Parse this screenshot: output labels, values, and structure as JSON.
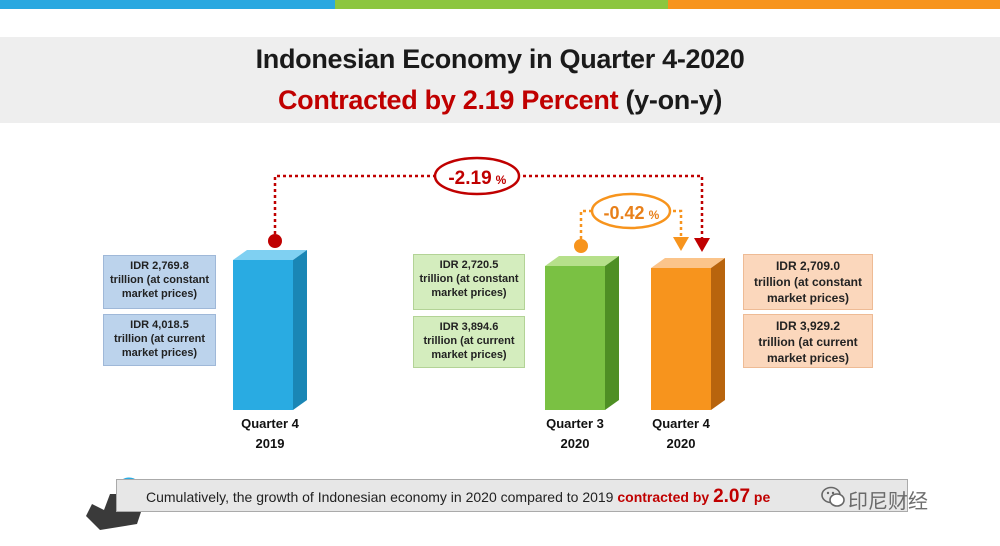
{
  "title": "Indonesian Economy in Quarter 4-2020",
  "subtitle_main": "Contracted by 2.19 Percent",
  "subtitle_suffix": "(y-on-y)",
  "chart_data": {
    "type": "bar",
    "categories": [
      "Quarter 4 2019",
      "Quarter 3 2020",
      "Quarter 4 2020"
    ],
    "series": [
      {
        "values": [
          2769.8,
          2720.5,
          2709.0
        ]
      },
      {
        "values": [
          4018.5,
          3894.6,
          3929.2
        ]
      }
    ],
    "unit": "IDR trillion",
    "colors": [
      "#29abe2",
      "#7ac143",
      "#f7941d"
    ]
  },
  "bars": [
    {
      "label_line1": "Quarter 4",
      "label_line2": "2019",
      "constant_value": "IDR 2,769.8",
      "constant_text": "trillion (at constant market prices)",
      "current_value": "IDR 4,018.5",
      "current_text": "trillion (at current market prices)"
    },
    {
      "label_line1": "Quarter 3",
      "label_line2": "2020",
      "constant_value": "IDR 2,720.5",
      "constant_text": "trillion (at constant market prices)",
      "current_value": "IDR 3,894.6",
      "current_text": "trillion (at current market prices)"
    },
    {
      "label_line1": "Quarter 4",
      "label_line2": "2020",
      "constant_value": "IDR 2,709.0",
      "constant_text": "trillion (at constant market prices)",
      "current_value": "IDR 3,929.2",
      "current_text": "trillion (at current market prices)"
    }
  ],
  "annotations": {
    "yoy_value": "-2.19",
    "yoy_unit": "%",
    "qoq_value": "-0.42",
    "qoq_unit": "%"
  },
  "footer": {
    "text": "Cumulatively, the growth of Indonesian economy in 2020 compared to 2019 ",
    "highlight": "contracted by ",
    "value": "2.07",
    "tail": " pe"
  },
  "watermark": "印尼财经"
}
